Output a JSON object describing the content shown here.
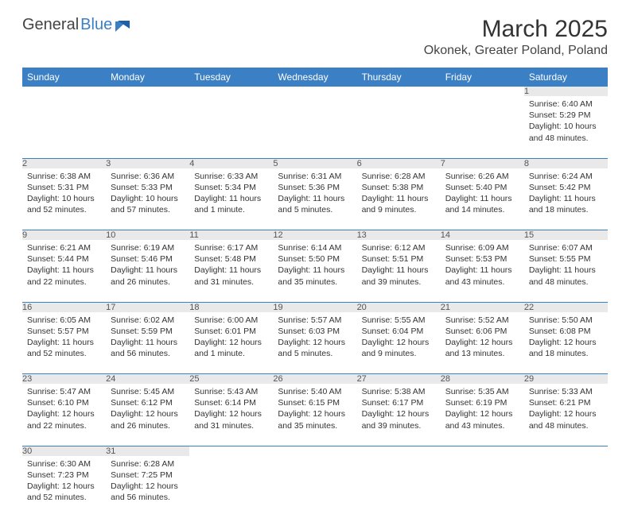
{
  "brand": {
    "general": "General",
    "blue": "Blue"
  },
  "title": {
    "month": "March 2025",
    "location": "Okonek, Greater Poland, Poland"
  },
  "colors": {
    "header_bg": "#3b7fc4",
    "header_text": "#ffffff",
    "daynum_bg": "#e9e9e9",
    "border": "#3b7fc4"
  },
  "weekdays": [
    "Sunday",
    "Monday",
    "Tuesday",
    "Wednesday",
    "Thursday",
    "Friday",
    "Saturday"
  ],
  "weeks": [
    [
      null,
      null,
      null,
      null,
      null,
      null,
      {
        "n": "1",
        "sunrise": "Sunrise: 6:40 AM",
        "sunset": "Sunset: 5:29 PM",
        "daylight": "Daylight: 10 hours and 48 minutes."
      }
    ],
    [
      {
        "n": "2",
        "sunrise": "Sunrise: 6:38 AM",
        "sunset": "Sunset: 5:31 PM",
        "daylight": "Daylight: 10 hours and 52 minutes."
      },
      {
        "n": "3",
        "sunrise": "Sunrise: 6:36 AM",
        "sunset": "Sunset: 5:33 PM",
        "daylight": "Daylight: 10 hours and 57 minutes."
      },
      {
        "n": "4",
        "sunrise": "Sunrise: 6:33 AM",
        "sunset": "Sunset: 5:34 PM",
        "daylight": "Daylight: 11 hours and 1 minute."
      },
      {
        "n": "5",
        "sunrise": "Sunrise: 6:31 AM",
        "sunset": "Sunset: 5:36 PM",
        "daylight": "Daylight: 11 hours and 5 minutes."
      },
      {
        "n": "6",
        "sunrise": "Sunrise: 6:28 AM",
        "sunset": "Sunset: 5:38 PM",
        "daylight": "Daylight: 11 hours and 9 minutes."
      },
      {
        "n": "7",
        "sunrise": "Sunrise: 6:26 AM",
        "sunset": "Sunset: 5:40 PM",
        "daylight": "Daylight: 11 hours and 14 minutes."
      },
      {
        "n": "8",
        "sunrise": "Sunrise: 6:24 AM",
        "sunset": "Sunset: 5:42 PM",
        "daylight": "Daylight: 11 hours and 18 minutes."
      }
    ],
    [
      {
        "n": "9",
        "sunrise": "Sunrise: 6:21 AM",
        "sunset": "Sunset: 5:44 PM",
        "daylight": "Daylight: 11 hours and 22 minutes."
      },
      {
        "n": "10",
        "sunrise": "Sunrise: 6:19 AM",
        "sunset": "Sunset: 5:46 PM",
        "daylight": "Daylight: 11 hours and 26 minutes."
      },
      {
        "n": "11",
        "sunrise": "Sunrise: 6:17 AM",
        "sunset": "Sunset: 5:48 PM",
        "daylight": "Daylight: 11 hours and 31 minutes."
      },
      {
        "n": "12",
        "sunrise": "Sunrise: 6:14 AM",
        "sunset": "Sunset: 5:50 PM",
        "daylight": "Daylight: 11 hours and 35 minutes."
      },
      {
        "n": "13",
        "sunrise": "Sunrise: 6:12 AM",
        "sunset": "Sunset: 5:51 PM",
        "daylight": "Daylight: 11 hours and 39 minutes."
      },
      {
        "n": "14",
        "sunrise": "Sunrise: 6:09 AM",
        "sunset": "Sunset: 5:53 PM",
        "daylight": "Daylight: 11 hours and 43 minutes."
      },
      {
        "n": "15",
        "sunrise": "Sunrise: 6:07 AM",
        "sunset": "Sunset: 5:55 PM",
        "daylight": "Daylight: 11 hours and 48 minutes."
      }
    ],
    [
      {
        "n": "16",
        "sunrise": "Sunrise: 6:05 AM",
        "sunset": "Sunset: 5:57 PM",
        "daylight": "Daylight: 11 hours and 52 minutes."
      },
      {
        "n": "17",
        "sunrise": "Sunrise: 6:02 AM",
        "sunset": "Sunset: 5:59 PM",
        "daylight": "Daylight: 11 hours and 56 minutes."
      },
      {
        "n": "18",
        "sunrise": "Sunrise: 6:00 AM",
        "sunset": "Sunset: 6:01 PM",
        "daylight": "Daylight: 12 hours and 1 minute."
      },
      {
        "n": "19",
        "sunrise": "Sunrise: 5:57 AM",
        "sunset": "Sunset: 6:03 PM",
        "daylight": "Daylight: 12 hours and 5 minutes."
      },
      {
        "n": "20",
        "sunrise": "Sunrise: 5:55 AM",
        "sunset": "Sunset: 6:04 PM",
        "daylight": "Daylight: 12 hours and 9 minutes."
      },
      {
        "n": "21",
        "sunrise": "Sunrise: 5:52 AM",
        "sunset": "Sunset: 6:06 PM",
        "daylight": "Daylight: 12 hours and 13 minutes."
      },
      {
        "n": "22",
        "sunrise": "Sunrise: 5:50 AM",
        "sunset": "Sunset: 6:08 PM",
        "daylight": "Daylight: 12 hours and 18 minutes."
      }
    ],
    [
      {
        "n": "23",
        "sunrise": "Sunrise: 5:47 AM",
        "sunset": "Sunset: 6:10 PM",
        "daylight": "Daylight: 12 hours and 22 minutes."
      },
      {
        "n": "24",
        "sunrise": "Sunrise: 5:45 AM",
        "sunset": "Sunset: 6:12 PM",
        "daylight": "Daylight: 12 hours and 26 minutes."
      },
      {
        "n": "25",
        "sunrise": "Sunrise: 5:43 AM",
        "sunset": "Sunset: 6:14 PM",
        "daylight": "Daylight: 12 hours and 31 minutes."
      },
      {
        "n": "26",
        "sunrise": "Sunrise: 5:40 AM",
        "sunset": "Sunset: 6:15 PM",
        "daylight": "Daylight: 12 hours and 35 minutes."
      },
      {
        "n": "27",
        "sunrise": "Sunrise: 5:38 AM",
        "sunset": "Sunset: 6:17 PM",
        "daylight": "Daylight: 12 hours and 39 minutes."
      },
      {
        "n": "28",
        "sunrise": "Sunrise: 5:35 AM",
        "sunset": "Sunset: 6:19 PM",
        "daylight": "Daylight: 12 hours and 43 minutes."
      },
      {
        "n": "29",
        "sunrise": "Sunrise: 5:33 AM",
        "sunset": "Sunset: 6:21 PM",
        "daylight": "Daylight: 12 hours and 48 minutes."
      }
    ],
    [
      {
        "n": "30",
        "sunrise": "Sunrise: 6:30 AM",
        "sunset": "Sunset: 7:23 PM",
        "daylight": "Daylight: 12 hours and 52 minutes."
      },
      {
        "n": "31",
        "sunrise": "Sunrise: 6:28 AM",
        "sunset": "Sunset: 7:25 PM",
        "daylight": "Daylight: 12 hours and 56 minutes."
      },
      null,
      null,
      null,
      null,
      null
    ]
  ]
}
